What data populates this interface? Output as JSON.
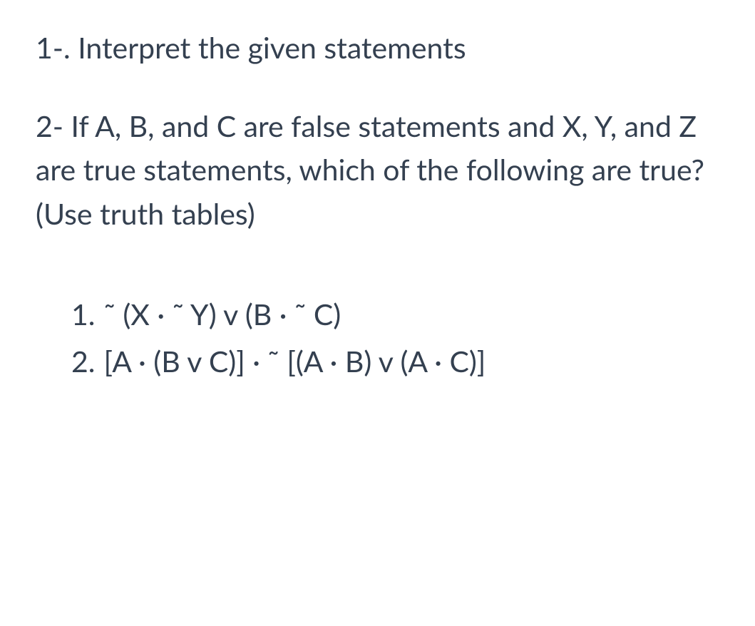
{
  "question1": {
    "number": "1-.",
    "text": "Interpret the given statements"
  },
  "question2": {
    "number": "2-",
    "text": "If A, B, and C are false statements and X, Y, and Z are true statements, which of the following are true? (Use truth tables)"
  },
  "subItems": [
    {
      "number": "1.",
      "expression": "˜ (X · ˜ Y) v (B · ˜ C)"
    },
    {
      "number": "2.",
      "expression": "[A · (B v C)] · ˜ [(A · B) v (A · C)]"
    }
  ],
  "colors": {
    "text": "#344050",
    "background": "#ffffff"
  },
  "typography": {
    "fontSize": 41,
    "lineHeight": 1.5,
    "fontFamily": "Segoe UI"
  }
}
